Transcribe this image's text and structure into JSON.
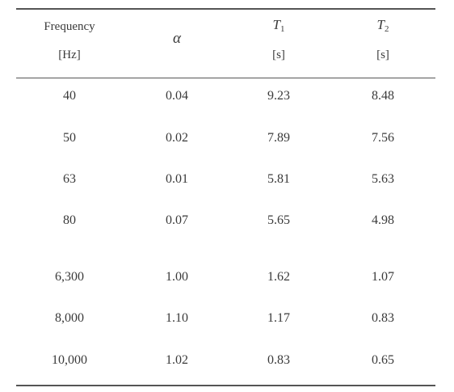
{
  "table": {
    "headers": {
      "frequency": {
        "label": "Frequency",
        "unit": "[Hz]"
      },
      "alpha": {
        "label": "α"
      },
      "t1": {
        "label": "T",
        "subscript": "1",
        "unit": "[s]"
      },
      "t2": {
        "label": "T",
        "subscript": "2",
        "unit": "[s]"
      }
    },
    "rows": [
      {
        "frequency": "40",
        "alpha": "0.04",
        "t1": "9.23",
        "t2": "8.48"
      },
      {
        "frequency": "50",
        "alpha": "0.02",
        "t1": "7.89",
        "t2": "7.56"
      },
      {
        "frequency": "63",
        "alpha": "0.01",
        "t1": "5.81",
        "t2": "5.63"
      },
      {
        "frequency": "80",
        "alpha": "0.07",
        "t1": "5.65",
        "t2": "4.98"
      },
      {
        "frequency": "6,300",
        "alpha": "1.00",
        "t1": "1.62",
        "t2": "1.07"
      },
      {
        "frequency": "8,000",
        "alpha": "1.10",
        "t1": "1.17",
        "t2": "0.83"
      },
      {
        "frequency": "10,000",
        "alpha": "1.02",
        "t1": "0.83",
        "t2": "0.65"
      }
    ]
  }
}
